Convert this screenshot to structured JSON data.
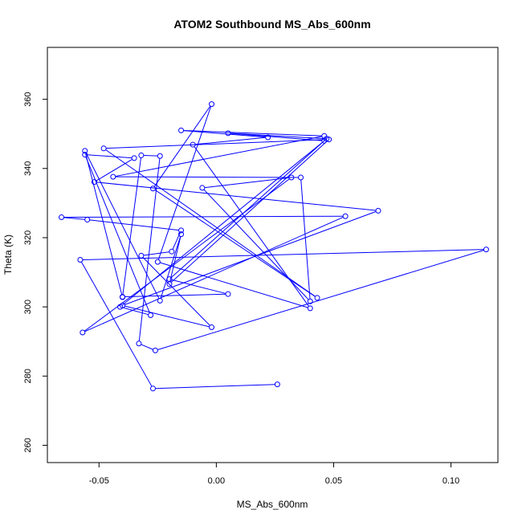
{
  "chart_data": {
    "type": "scatter",
    "title": "ATOM2 Southbound MS_Abs_600nm",
    "xlabel": "MS_Abs_600nm",
    "ylabel": "Theta (K)",
    "xlim": [
      -0.072,
      0.12
    ],
    "ylim": [
      255,
      375
    ],
    "x_ticks": [
      -0.05,
      0.0,
      0.05,
      0.1
    ],
    "x_tick_labels": [
      "-0.05",
      "0.00",
      "0.05",
      "0.10"
    ],
    "y_ticks": [
      260,
      280,
      300,
      320,
      340,
      360
    ],
    "y_tick_labels": [
      "260",
      "280",
      "300",
      "320",
      "340",
      "360"
    ],
    "grid": false,
    "connected": true,
    "marker": "open-circle",
    "color": "#0000ff",
    "series": [
      {
        "points": [
          {
            "x": 0.026,
            "y": 277.6
          },
          {
            "x": -0.027,
            "y": 276.4
          },
          {
            "x": -0.058,
            "y": 313.6
          },
          {
            "x": 0.115,
            "y": 316.6
          },
          {
            "x": -0.026,
            "y": 287.4
          },
          {
            "x": -0.033,
            "y": 289.4
          },
          {
            "x": -0.024,
            "y": 343.6
          },
          {
            "x": -0.032,
            "y": 343.8
          },
          {
            "x": -0.04,
            "y": 302.8
          },
          {
            "x": -0.056,
            "y": 345.1
          },
          {
            "x": -0.024,
            "y": 301.8
          },
          {
            "x": -0.015,
            "y": 321.0
          },
          {
            "x": -0.02,
            "y": 306.6
          },
          {
            "x": 0.048,
            "y": 348.4
          },
          {
            "x": -0.048,
            "y": 345.8
          },
          {
            "x": 0.043,
            "y": 302.6
          },
          {
            "x": -0.027,
            "y": 334.2
          },
          {
            "x": -0.002,
            "y": 358.6
          },
          {
            "x": -0.025,
            "y": 313.0
          },
          {
            "x": 0.04,
            "y": 299.6
          },
          {
            "x": -0.01,
            "y": 346.9
          },
          {
            "x": 0.022,
            "y": 349.0
          },
          {
            "x": -0.015,
            "y": 351.0
          },
          {
            "x": 0.046,
            "y": 349.4
          },
          {
            "x": -0.044,
            "y": 337.6
          },
          {
            "x": 0.036,
            "y": 337.4
          },
          {
            "x": 0.04,
            "y": 301.6
          },
          {
            "x": -0.006,
            "y": 334.4
          },
          {
            "x": 0.032,
            "y": 337.4
          },
          {
            "x": -0.057,
            "y": 292.6
          },
          {
            "x": 0.055,
            "y": 326.2
          },
          {
            "x": -0.066,
            "y": 325.9
          },
          {
            "x": -0.055,
            "y": 325.2
          },
          {
            "x": -0.015,
            "y": 322.1
          },
          {
            "x": -0.019,
            "y": 316.0
          },
          {
            "x": -0.032,
            "y": 314.8
          },
          {
            "x": -0.002,
            "y": 294.1
          },
          {
            "x": -0.04,
            "y": 300.4
          },
          {
            "x": 0.069,
            "y": 327.8
          },
          {
            "x": -0.052,
            "y": 336.1
          },
          {
            "x": -0.035,
            "y": 343.0
          },
          {
            "x": -0.056,
            "y": 344.0
          },
          {
            "x": -0.028,
            "y": 297.6
          },
          {
            "x": -0.041,
            "y": 300.0
          },
          {
            "x": 0.046,
            "y": 348.0
          },
          {
            "x": 0.005,
            "y": 350.2
          },
          {
            "x": 0.047,
            "y": 348.6
          },
          {
            "x": -0.02,
            "y": 308.0
          },
          {
            "x": 0.005,
            "y": 303.7
          },
          {
            "x": -0.04,
            "y": 302.9
          }
        ]
      }
    ]
  }
}
